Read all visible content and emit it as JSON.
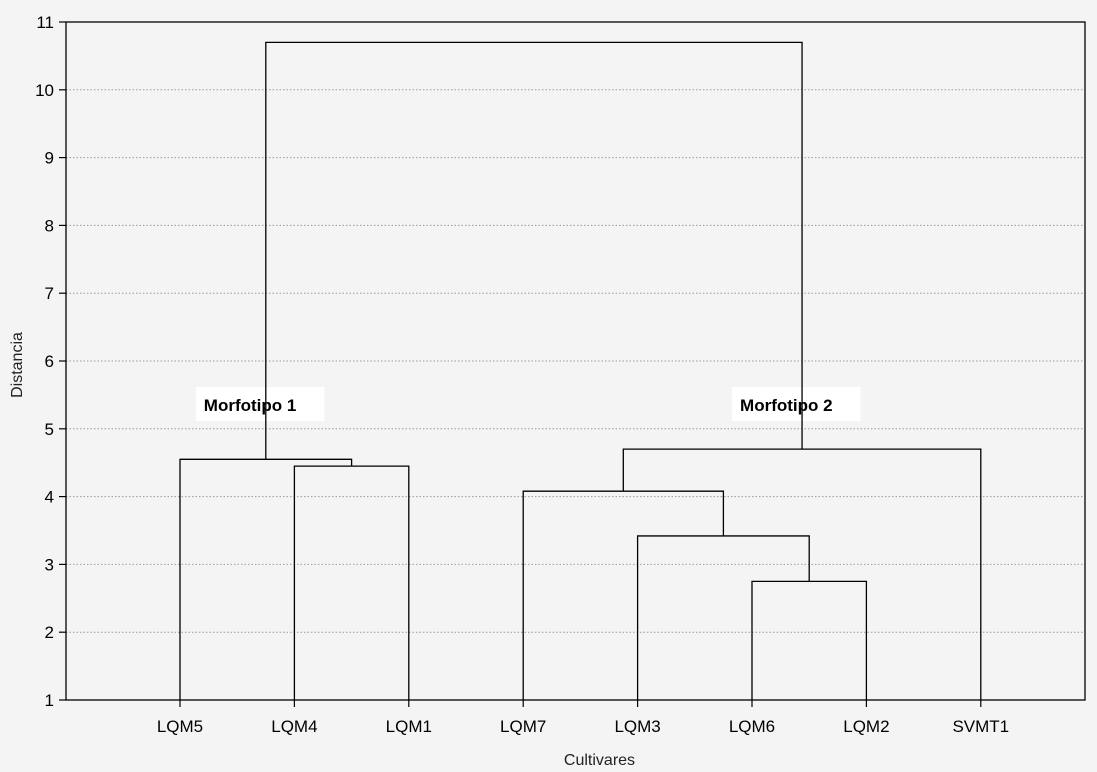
{
  "chart_data": {
    "type": "dendrogram",
    "xlabel": "Cultivares",
    "ylabel": "Distancia",
    "ylim": [
      1,
      11
    ],
    "yticks": [
      1,
      2,
      3,
      4,
      5,
      6,
      7,
      8,
      9,
      10,
      11
    ],
    "grid": "horizontal dotted",
    "leaves": [
      "LQM5",
      "LQM4",
      "LQM1",
      "LQM7",
      "LQM3",
      "LQM6",
      "LQM2",
      "SVMT1"
    ],
    "merges": [
      {
        "left": "LQM4",
        "right": "LQM1",
        "height": 4.45
      },
      {
        "left": "LQM6",
        "right": "LQM2",
        "height": 2.75
      },
      {
        "left": "LQM3",
        "right": "LQM6+LQM2",
        "height": 3.42
      },
      {
        "left": "LQM7",
        "right": "LQM3+LQM6+LQM2",
        "height": 4.08
      },
      {
        "left": "LQM5",
        "right": "LQM4+LQM1",
        "height": 4.55
      },
      {
        "left": "LQM7+LQM3+LQM6+LQM2",
        "right": "SVMT1",
        "height": 4.7
      },
      {
        "left": "Morfotipo 1",
        "right": "Morfotipo 2",
        "height": 10.7
      }
    ],
    "annotations": [
      {
        "text": "Morfotipo 1",
        "cluster": [
          "LQM5",
          "LQM4",
          "LQM1"
        ]
      },
      {
        "text": "Morfotipo 2",
        "cluster": [
          "LQM7",
          "LQM3",
          "LQM6",
          "LQM2",
          "SVMT1"
        ]
      }
    ]
  }
}
